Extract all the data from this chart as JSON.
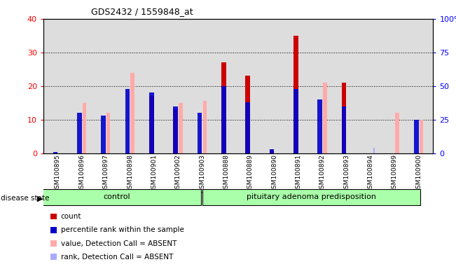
{
  "title": "GDS2432 / 1559848_at",
  "samples": [
    "GSM100895",
    "GSM100896",
    "GSM100897",
    "GSM100898",
    "GSM100901",
    "GSM100902",
    "GSM100903",
    "GSM100888",
    "GSM100889",
    "GSM100890",
    "GSM100891",
    "GSM100892",
    "GSM100893",
    "GSM100894",
    "GSM100899",
    "GSM100900"
  ],
  "count": [
    0,
    0,
    0,
    0,
    17,
    13,
    0,
    27,
    23,
    1,
    35,
    0,
    21,
    0,
    0,
    0
  ],
  "percentile": [
    1,
    30,
    28,
    48,
    45,
    35,
    30,
    50,
    38,
    3,
    48,
    40,
    35,
    0,
    0,
    25
  ],
  "value_absent": [
    0,
    15,
    12,
    24,
    0,
    15,
    15.5,
    0,
    0,
    0,
    0,
    21,
    0,
    0,
    12,
    10
  ],
  "rank_absent": [
    0,
    0,
    0,
    0,
    0,
    0,
    0,
    0,
    0,
    0,
    0,
    0,
    0,
    4,
    0,
    0
  ],
  "count_color": "#cc0000",
  "percentile_color": "#0000cc",
  "value_absent_color": "#ffaaaa",
  "rank_absent_color": "#aaaaff",
  "left_ylim": [
    0,
    40
  ],
  "right_ylim": [
    0,
    100
  ],
  "left_yticks": [
    0,
    10,
    20,
    30,
    40
  ],
  "right_yticks": [
    0,
    25,
    50,
    75,
    100
  ],
  "right_yticklabels": [
    "0",
    "25",
    "50",
    "75",
    "100%"
  ],
  "groups": [
    {
      "label": "control",
      "start": 0,
      "end": 7
    },
    {
      "label": "pituitary adenoma predisposition",
      "start": 7,
      "end": 16
    }
  ],
  "group_color": "#aaffaa",
  "bar_width": 0.35,
  "background_color": "#dddddd",
  "legend_items": [
    {
      "label": "count",
      "color": "#cc0000"
    },
    {
      "label": "percentile rank within the sample",
      "color": "#0000cc"
    },
    {
      "label": "value, Detection Call = ABSENT",
      "color": "#ffaaaa"
    },
    {
      "label": "rank, Detection Call = ABSENT",
      "color": "#aaaaff"
    }
  ]
}
